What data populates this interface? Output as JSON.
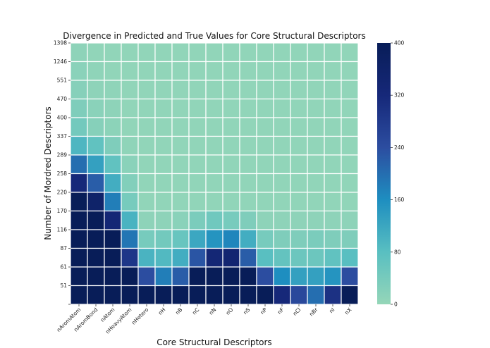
{
  "chart_data": {
    "type": "heatmap",
    "title": "Divergence in Predicted and True Values for Core Structural Descriptors",
    "xlabel": "Core Structural Descriptors",
    "ylabel": "Number of Mordred Descriptors",
    "x_categories": [
      "nAromAtom",
      "nAromBond",
      "nAtom",
      "nHeavyAtom",
      "nHetero",
      "nH",
      "nB",
      "nC",
      "nN",
      "nO",
      "nS",
      "nP",
      "nF",
      "nCl",
      "nBr",
      "nI",
      "nX"
    ],
    "y_categories": [
      "1398",
      "1246",
      "551",
      "470",
      "400",
      "337",
      "289",
      "258",
      "220",
      "170",
      "116",
      "87",
      "61",
      "51"
    ],
    "values": [
      [
        10,
        5,
        5,
        5,
        5,
        5,
        5,
        5,
        5,
        5,
        5,
        5,
        5,
        5,
        5,
        5,
        5
      ],
      [
        15,
        8,
        5,
        5,
        5,
        5,
        5,
        5,
        5,
        5,
        5,
        5,
        5,
        5,
        5,
        5,
        5
      ],
      [
        20,
        10,
        8,
        5,
        5,
        5,
        5,
        5,
        5,
        5,
        5,
        5,
        5,
        5,
        5,
        5,
        5
      ],
      [
        30,
        15,
        10,
        5,
        5,
        5,
        5,
        5,
        5,
        5,
        5,
        5,
        5,
        5,
        5,
        5,
        5
      ],
      [
        45,
        20,
        12,
        5,
        5,
        5,
        5,
        5,
        5,
        5,
        5,
        5,
        5,
        5,
        5,
        5,
        5
      ],
      [
        95,
        70,
        30,
        8,
        5,
        5,
        5,
        5,
        5,
        5,
        5,
        5,
        5,
        5,
        5,
        5,
        5
      ],
      [
        200,
        130,
        70,
        15,
        5,
        5,
        5,
        5,
        5,
        5,
        5,
        5,
        5,
        5,
        5,
        5,
        5
      ],
      [
        320,
        220,
        110,
        25,
        5,
        5,
        5,
        5,
        5,
        5,
        5,
        5,
        5,
        5,
        5,
        5,
        5
      ],
      [
        400,
        360,
        180,
        40,
        5,
        5,
        5,
        5,
        5,
        5,
        5,
        5,
        5,
        5,
        5,
        5,
        5
      ],
      [
        400,
        400,
        330,
        100,
        10,
        10,
        15,
        35,
        50,
        40,
        30,
        10,
        10,
        10,
        10,
        10,
        10
      ],
      [
        400,
        400,
        400,
        190,
        40,
        45,
        60,
        120,
        150,
        170,
        110,
        40,
        30,
        30,
        35,
        30,
        30
      ],
      [
        400,
        400,
        400,
        290,
        100,
        90,
        110,
        230,
        330,
        340,
        220,
        80,
        65,
        55,
        55,
        70,
        80
      ],
      [
        400,
        400,
        400,
        400,
        240,
        180,
        220,
        400,
        400,
        400,
        400,
        240,
        160,
        130,
        130,
        150,
        240
      ],
      [
        400,
        400,
        400,
        400,
        400,
        400,
        400,
        400,
        400,
        400,
        400,
        400,
        320,
        250,
        200,
        300,
        400
      ]
    ],
    "colorbar": {
      "min": 0,
      "max": 400,
      "ticks": [
        0,
        80,
        160,
        240,
        320,
        400
      ]
    },
    "colormap": [
      "#95d6b8",
      "#59bfc1",
      "#1e8ec0",
      "#2c4da0",
      "#162879",
      "#081d58"
    ]
  }
}
